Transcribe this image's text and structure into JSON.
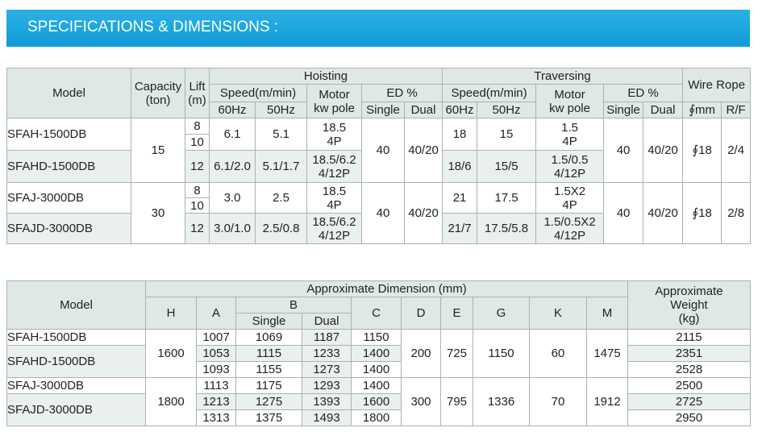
{
  "header": {
    "title": "SPECIFICATIONS & DIMENSIONS :"
  },
  "specs_table": {
    "columns": {
      "model": "Model",
      "capacity": "Capacity\n(ton)",
      "lift": "Lift\n(m)",
      "hoisting": {
        "title": "Hoisting",
        "speed": "Speed(m/min)",
        "hz60": "60Hz",
        "hz50": "50Hz",
        "motor": "Motor\nkw pole",
        "ed": "ED %",
        "single": "Single",
        "dual": "Dual"
      },
      "traversing": {
        "title": "Traversing",
        "speed": "Speed(m/min)",
        "hz60": "60Hz",
        "hz50": "50Hz",
        "motor": "Motor\nkw pole",
        "ed": "ED %",
        "single": "Single",
        "dual": "Dual"
      },
      "wire_rope": {
        "title": "Wire Rope",
        "diameter": "∮mm",
        "rf": "R/F"
      }
    },
    "groups": [
      {
        "capacity": "15",
        "hoist_ed_single": "40",
        "hoist_ed_dual": "40/20",
        "trav_ed_single": "40",
        "trav_ed_dual": "40/20",
        "rope_diameter": "∮18",
        "rope_rf": "2/4",
        "models": [
          {
            "model": "SFAH-1500DB",
            "lifts": [
              "8",
              "10"
            ],
            "hoist_60": "6.1",
            "hoist_50": "5.1",
            "hoist_motor": "18.5\n4P",
            "trav_60": "18",
            "trav_50": "15",
            "trav_motor": "1.5\n4P"
          },
          {
            "model": "SFAHD-1500DB",
            "lifts": [
              "12"
            ],
            "hoist_60": "6.1/2.0",
            "hoist_50": "5.1/1.7",
            "hoist_motor": "18.5/6.2\n4/12P",
            "trav_60": "18/6",
            "trav_50": "15/5",
            "trav_motor": "1.5/0.5\n4/12P"
          }
        ]
      },
      {
        "capacity": "30",
        "hoist_ed_single": "40",
        "hoist_ed_dual": "40/20",
        "trav_ed_single": "40",
        "trav_ed_dual": "40/20",
        "rope_diameter": "∮18",
        "rope_rf": "2/8",
        "models": [
          {
            "model": "SFAJ-3000DB",
            "lifts": [
              "8",
              "10"
            ],
            "hoist_60": "3.0",
            "hoist_50": "2.5",
            "hoist_motor": "18.5\n4P",
            "trav_60": "21",
            "trav_50": "17.5",
            "trav_motor": "1.5X2\n4P"
          },
          {
            "model": "SFAJD-3000DB",
            "lifts": [
              "12"
            ],
            "hoist_60": "3.0/1.0",
            "hoist_50": "2.5/0.8",
            "hoist_motor": "18.5/6.2\n4/12P",
            "trav_60": "21/7",
            "trav_50": "17.5/5.8",
            "trav_motor": "1.5/0.5X2\n4/12P"
          }
        ]
      }
    ]
  },
  "dimensions_table": {
    "columns": {
      "model": "Model",
      "dimension": "Approximate Dimension (mm)",
      "h": "H",
      "a": "A",
      "b": "B",
      "b_single": "Single",
      "b_dual": "Dual",
      "c": "C",
      "d": "D",
      "e": "E",
      "g": "G",
      "k": "K",
      "m": "M",
      "weight": "Approximate\nWeight\n(kg)"
    },
    "groups": [
      {
        "h": "1600",
        "d": "200",
        "e": "725",
        "g": "1150",
        "k": "60",
        "m": "1475",
        "models": [
          "SFAH-1500DB",
          "SFAHD-1500DB"
        ],
        "rows": [
          [
            "1007",
            "1069",
            "1187",
            "1150",
            "2115"
          ],
          [
            "1053",
            "1115",
            "1233",
            "1400",
            "2351"
          ],
          [
            "1093",
            "1155",
            "1273",
            "1400",
            "2528"
          ]
        ]
      },
      {
        "h": "1800",
        "d": "300",
        "e": "795",
        "g": "1336",
        "k": "70",
        "m": "1912",
        "models": [
          "SFAJ-3000DB",
          "SFAJD-3000DB"
        ],
        "rows": [
          [
            "1113",
            "1175",
            "1293",
            "1400",
            "2500"
          ],
          [
            "1213",
            "1275",
            "1393",
            "1600",
            "2725"
          ],
          [
            "1313",
            "1375",
            "1493",
            "1800",
            "2950"
          ]
        ]
      }
    ]
  }
}
